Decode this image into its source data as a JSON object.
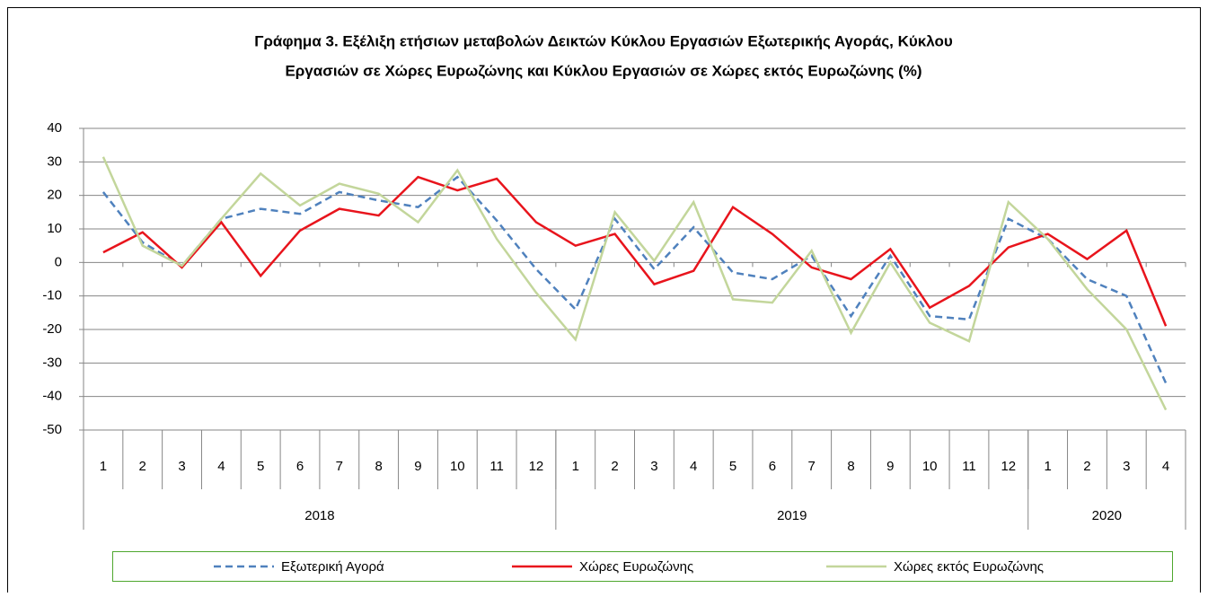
{
  "chart_data": {
    "type": "line",
    "title": [
      "Γράφημα 3. Εξέλιξη  ετήσιων μεταβολών Δεικτών Κύκλου Εργασιών Εξωτερικής Αγοράς,  Κύκλου",
      "Εργασιών σε Χώρες Ευρωζώνης και Κύκλου Εργασιών σε Χώρες εκτός Ευρωζώνης (%)"
    ],
    "categories": [
      "1",
      "2",
      "3",
      "4",
      "5",
      "6",
      "7",
      "8",
      "9",
      "10",
      "11",
      "12",
      "1",
      "2",
      "3",
      "4",
      "5",
      "6",
      "7",
      "8",
      "9",
      "10",
      "11",
      "12",
      "1",
      "2",
      "3",
      "4"
    ],
    "groups": [
      {
        "label": "2018",
        "count": 12
      },
      {
        "label": "2019",
        "count": 12
      },
      {
        "label": "2020",
        "count": 4
      }
    ],
    "series": [
      {
        "name": "Εξωτερική Αγορά",
        "color": "#4f81bd",
        "dashed": true,
        "values": [
          21,
          6,
          -1,
          13,
          16,
          14.5,
          21,
          18.5,
          16.5,
          25.5,
          12.5,
          -2,
          -14,
          13,
          -2,
          10.5,
          -3,
          -5,
          2,
          -16,
          2,
          -16,
          -17,
          13,
          7,
          -5,
          -10,
          -36
        ]
      },
      {
        "name": "Χώρες Ευρωζώνης",
        "color": "#e8141c",
        "dashed": false,
        "values": [
          3,
          9,
          -1.5,
          12,
          -4,
          9.5,
          16,
          14,
          25.5,
          21.5,
          25,
          12,
          5,
          8.5,
          -6.5,
          -2.5,
          16.5,
          8.5,
          -1.5,
          -5,
          4,
          -13.5,
          -7,
          4.5,
          8.5,
          1,
          9.5,
          -19
        ]
      },
      {
        "name": "Χώρες εκτός Ευρωζώνης",
        "color": "#c3d69b",
        "dashed": false,
        "values": [
          31.5,
          5,
          -1,
          13,
          26.5,
          17,
          23.5,
          20.5,
          12,
          27.5,
          7,
          -9,
          -23,
          15,
          0.5,
          18,
          -11,
          -12,
          3.5,
          -21,
          0,
          -18,
          -23.5,
          18,
          7,
          -8,
          -20,
          -44
        ]
      }
    ],
    "ylim": [
      -50,
      40
    ],
    "yticks": [
      -50,
      -40,
      -30,
      -20,
      -10,
      0,
      10,
      20,
      30,
      40
    ],
    "grid": true,
    "legend": "bottom"
  }
}
